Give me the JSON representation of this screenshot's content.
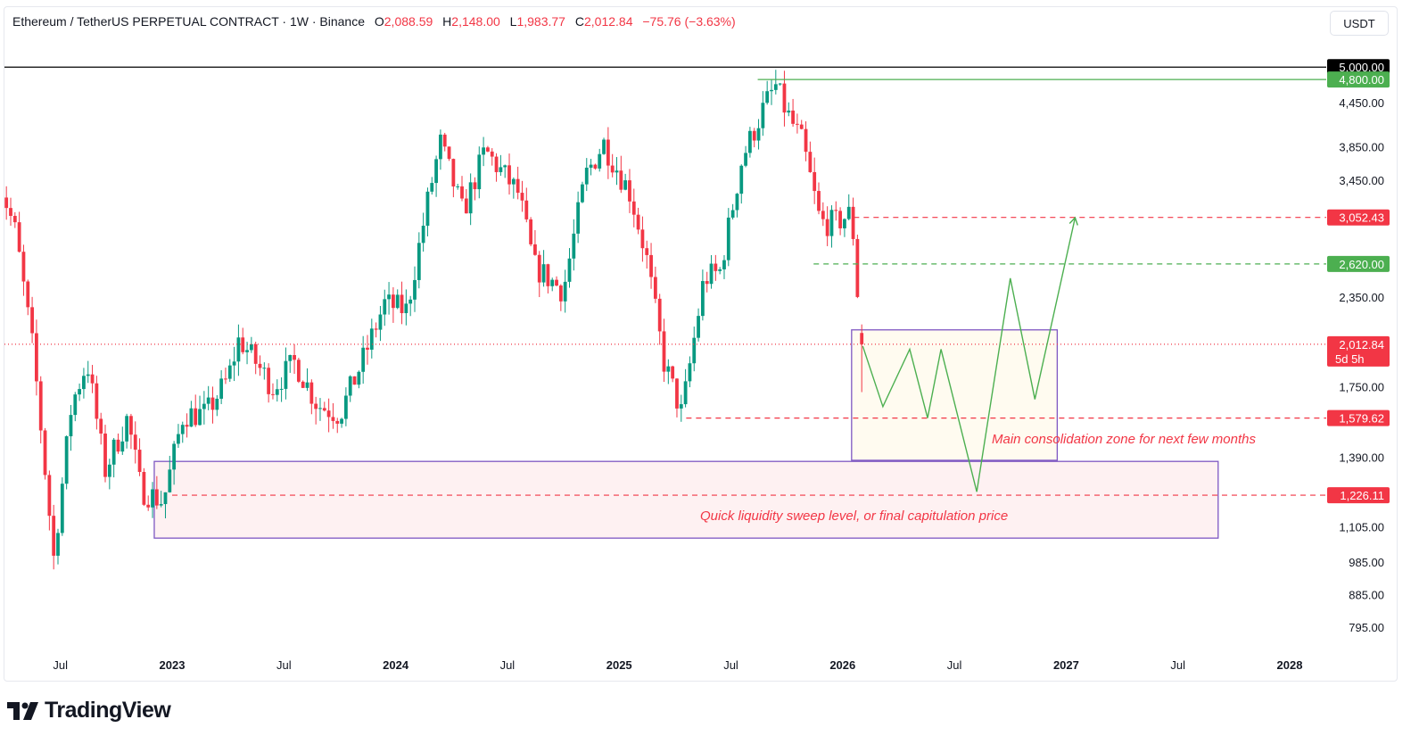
{
  "header": {
    "symbol": "Ethereum / TetherUS PERPETUAL CONTRACT · 1W · Binance",
    "o_label": "O",
    "o": "2,088.59",
    "h_label": "H",
    "h": "2,148.00",
    "l_label": "L",
    "l": "1,983.77",
    "c_label": "C",
    "c": "2,012.84",
    "change": "−75.76 (−3.63%)"
  },
  "currency_button": "USDT",
  "brand": "TradingView",
  "colors": {
    "up": "#089981",
    "down": "#f23645",
    "green_line": "#4caf50",
    "purple": "#7e57c2"
  },
  "chart_data": {
    "type": "candlestick",
    "scale": "log",
    "ylim": [
      760,
      5300
    ],
    "y_ticks": [
      "4,450.00",
      "3,850.00",
      "3,450.00",
      "2,350.00",
      "1,750.00",
      "1,390.00",
      "1,105.00",
      "985.00",
      "885.00",
      "795.00"
    ],
    "y_tick_values": [
      4450,
      3850,
      3450,
      2350,
      1750,
      1390,
      1105,
      985,
      885,
      795
    ],
    "x_ticks": [
      {
        "label": "Jul",
        "t": 2022.5,
        "year": false
      },
      {
        "label": "2023",
        "t": 2023.0,
        "year": true
      },
      {
        "label": "Jul",
        "t": 2023.5,
        "year": false
      },
      {
        "label": "2024",
        "t": 2024.0,
        "year": true
      },
      {
        "label": "Jul",
        "t": 2024.5,
        "year": false
      },
      {
        "label": "2025",
        "t": 2025.0,
        "year": true
      },
      {
        "label": "Jul",
        "t": 2025.5,
        "year": false
      },
      {
        "label": "2026",
        "t": 2026.0,
        "year": true
      },
      {
        "label": "Jul",
        "t": 2026.5,
        "year": false
      },
      {
        "label": "2027",
        "t": 2027.0,
        "year": true
      },
      {
        "label": "Jul",
        "t": 2027.5,
        "year": false
      },
      {
        "label": "2028",
        "t": 2028.0,
        "year": true
      }
    ],
    "close_anchors": [
      [
        2022.22,
        3500
      ],
      [
        2022.3,
        2900
      ],
      [
        2022.38,
        1950
      ],
      [
        2022.47,
        1000
      ],
      [
        2022.55,
        1650
      ],
      [
        2022.62,
        1900
      ],
      [
        2022.7,
        1330
      ],
      [
        2022.8,
        1580
      ],
      [
        2022.86,
        1250
      ],
      [
        2022.96,
        1200
      ],
      [
        2023.05,
        1600
      ],
      [
        2023.15,
        1600
      ],
      [
        2023.25,
        1800
      ],
      [
        2023.3,
        2050
      ],
      [
        2023.45,
        1750
      ],
      [
        2023.55,
        1900
      ],
      [
        2023.65,
        1650
      ],
      [
        2023.75,
        1600
      ],
      [
        2023.85,
        1900
      ],
      [
        2023.95,
        2300
      ],
      [
        2024.05,
        2250
      ],
      [
        2024.15,
        3300
      ],
      [
        2024.2,
        3900
      ],
      [
        2024.3,
        3100
      ],
      [
        2024.4,
        3800
      ],
      [
        2024.55,
        3300
      ],
      [
        2024.62,
        2600
      ],
      [
        2024.75,
        2400
      ],
      [
        2024.85,
        3500
      ],
      [
        2024.93,
        3900
      ],
      [
        2025.05,
        3300
      ],
      [
        2025.12,
        2700
      ],
      [
        2025.2,
        1900
      ],
      [
        2025.28,
        1600
      ],
      [
        2025.38,
        2500
      ],
      [
        2025.45,
        2550
      ],
      [
        2025.55,
        3700
      ],
      [
        2025.65,
        4400
      ],
      [
        2025.7,
        4700
      ],
      [
        2025.75,
        4300
      ],
      [
        2025.82,
        3900
      ],
      [
        2025.9,
        3000
      ],
      [
        2025.97,
        3000
      ],
      [
        2026.04,
        3100
      ],
      [
        2026.07,
        2300
      ],
      [
        2026.1,
        2012.84
      ]
    ],
    "last": {
      "open": 2088.59,
      "high": 2148.0,
      "low": 1983.77,
      "close": 2012.84
    },
    "price_labels": [
      {
        "value": 5000.0,
        "text": "5,000.00",
        "color": "#000000"
      },
      {
        "value": 4800.0,
        "text": "4,800.00",
        "color": "#4caf50"
      },
      {
        "value": 3052.43,
        "text": "3,052.43",
        "color": "#f23645"
      },
      {
        "value": 2620.0,
        "text": "2,620.00",
        "color": "#4caf50"
      },
      {
        "value": 1579.62,
        "text": "1,579.62",
        "color": "#f23645"
      },
      {
        "value": 1226.11,
        "text": "1,226.11",
        "color": "#f23645"
      }
    ],
    "current_price": {
      "text": "2,012.84",
      "countdown": "5d 5h",
      "value": 2012.84
    },
    "annotations": {
      "consolidation": "Main consolidation zone for next few months",
      "sweep": "Quick liquidity sweep level, or final capitulation price"
    },
    "projection": [
      [
        2026.09,
        2000
      ],
      [
        2026.18,
        1640
      ],
      [
        2026.3,
        1980
      ],
      [
        2026.38,
        1580
      ],
      [
        2026.44,
        1980
      ],
      [
        2026.6,
        1240
      ],
      [
        2026.75,
        2500
      ],
      [
        2026.86,
        1680
      ],
      [
        2027.04,
        3050
      ]
    ]
  }
}
